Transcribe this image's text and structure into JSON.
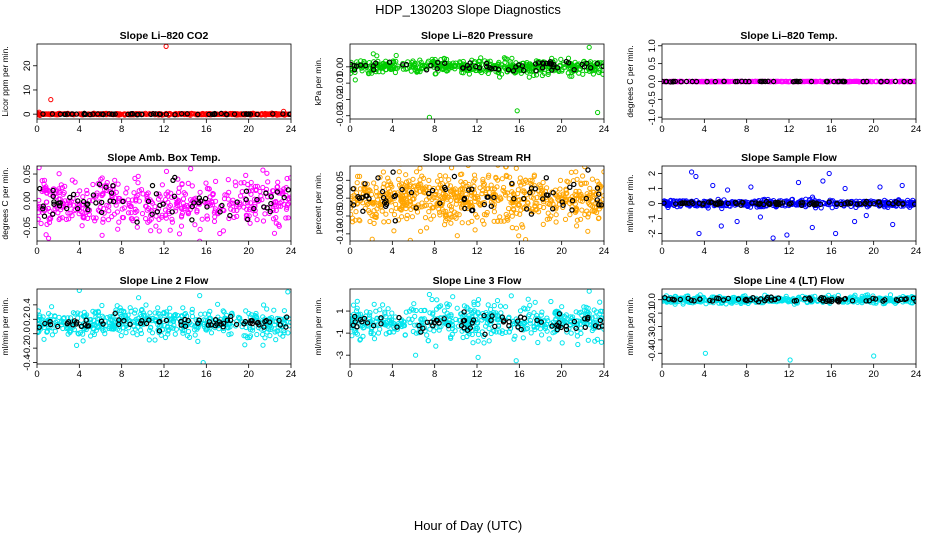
{
  "figure": {
    "title": "HDP_130203  Slope Diagnostics",
    "xlabel": "Hour of Day (UTC)"
  },
  "colors": {
    "co2": "#ff0000",
    "pressure": "#00cc00",
    "temp": "#ff00ff",
    "box_temp": "#ff00ff",
    "rh": "#ffa500",
    "sample_flow": "#0000ff",
    "line_flow": "#00e5ee",
    "reference": "#000000"
  },
  "chart_data": [
    {
      "type": "scatter",
      "title": "Slope Li–820 CO2",
      "ylabel": "Licor ppm per min.",
      "xlim": [
        0,
        24
      ],
      "x_ticks": [
        "0",
        "4",
        "8",
        "12",
        "16",
        "20",
        "24"
      ],
      "ylim": [
        -2,
        29
      ],
      "y_ticks": [
        {
          "v": 0,
          "label": "0"
        },
        {
          "v": 10,
          "label": "10"
        },
        {
          "v": 20,
          "label": "20"
        }
      ],
      "series_color_key": "co2",
      "base": 0,
      "spread": 0.15,
      "n_main": 420,
      "n_ref": 60,
      "ref_spread": 0.12,
      "outliers": [
        [
          12.2,
          28
        ],
        [
          1.3,
          6
        ],
        [
          0.2,
          0.8
        ],
        [
          23.3,
          1.2
        ]
      ]
    },
    {
      "type": "scatter",
      "title": "Slope Li–820 Pressure",
      "ylabel": "kPa per min.",
      "xlim": [
        0,
        24
      ],
      "x_ticks": [
        "0",
        "4",
        "8",
        "12",
        "16",
        "20",
        "24"
      ],
      "ylim": [
        -0.032,
        0.014
      ],
      "y_ticks": [
        {
          "v": 0,
          "label": "0.00"
        },
        {
          "v": -0.01,
          "label": "-0.01"
        },
        {
          "v": -0.02,
          "label": "-0.02"
        },
        {
          "v": -0.03,
          "label": "-0.03"
        }
      ],
      "series_color_key": "pressure",
      "base": 0,
      "spread": 0.0022,
      "n_main": 500,
      "n_ref": 60,
      "ref_spread": 0.0018,
      "outliers": [
        [
          7.5,
          -0.031
        ],
        [
          15.8,
          -0.027
        ],
        [
          23.4,
          -0.028
        ],
        [
          2.2,
          0.008
        ],
        [
          0.5,
          -0.008
        ],
        [
          22.6,
          0.012
        ]
      ]
    },
    {
      "type": "scatter",
      "title": "Slope Li–820 Temp.",
      "ylabel": "degrees C per min.",
      "xlim": [
        0,
        24
      ],
      "x_ticks": [
        "0",
        "4",
        "8",
        "12",
        "16",
        "20",
        "24"
      ],
      "ylim": [
        -1.05,
        1.05
      ],
      "y_ticks": [
        {
          "v": 1,
          "label": "1.0"
        },
        {
          "v": 0.5,
          "label": "0.5"
        },
        {
          "v": 0,
          "label": "0.0"
        },
        {
          "v": -0.5,
          "label": "-0.5"
        },
        {
          "v": -1,
          "label": "-1.0"
        }
      ],
      "series_color_key": "temp",
      "base": 0,
      "spread": 0.003,
      "n_main": 360,
      "n_ref": 50,
      "ref_spread": 0.003,
      "outliers": []
    },
    {
      "type": "scatter",
      "title": "Slope Amb. Box Temp.",
      "ylabel": "degrees C per min.",
      "xlim": [
        0,
        24
      ],
      "x_ticks": [
        "0",
        "4",
        "8",
        "12",
        "16",
        "20",
        "24"
      ],
      "ylim": [
        -0.075,
        0.065
      ],
      "y_ticks": [
        {
          "v": 0.05,
          "label": "0.05"
        },
        {
          "v": 0,
          "label": "0.00"
        },
        {
          "v": -0.05,
          "label": "-0.05"
        }
      ],
      "series_color_key": "box_temp",
      "base": -0.005,
      "spread": 0.024,
      "n_main": 480,
      "n_ref": 70,
      "ref_spread": 0.02,
      "outliers": [
        [
          0.2,
          0.062
        ],
        [
          1.1,
          -0.07
        ]
      ]
    },
    {
      "type": "scatter",
      "title": "Slope Gas Stream RH",
      "ylabel": "percent per min.",
      "xlim": [
        0,
        24
      ],
      "x_ticks": [
        "0",
        "4",
        "8",
        "12",
        "16",
        "20",
        "24"
      ],
      "ylim": [
        -0.12,
        0.09
      ],
      "y_ticks": [
        {
          "v": 0.05,
          "label": "0.05"
        },
        {
          "v": 0,
          "label": "0.00"
        },
        {
          "v": -0.05,
          "label": "-0.05"
        },
        {
          "v": -0.1,
          "label": "-0.10"
        }
      ],
      "series_color_key": "rh",
      "base": 0,
      "spread": 0.035,
      "n_main": 700,
      "n_ref": 70,
      "ref_spread": 0.03,
      "outliers": [
        [
          2.1,
          -0.115
        ],
        [
          9.6,
          0.085
        ]
      ]
    },
    {
      "type": "scatter",
      "title": "Slope Sample Flow",
      "ylabel": "ml/min per min.",
      "xlim": [
        0,
        24
      ],
      "x_ticks": [
        "0",
        "4",
        "8",
        "12",
        "16",
        "20",
        "24"
      ],
      "ylim": [
        -2.5,
        2.5
      ],
      "y_ticks": [
        {
          "v": 2,
          "label": "2"
        },
        {
          "v": 1,
          "label": "1"
        },
        {
          "v": 0,
          "label": "0"
        },
        {
          "v": -1,
          "label": "-1"
        },
        {
          "v": -2,
          "label": "-2"
        }
      ],
      "series_color_key": "sample_flow",
      "base": 0,
      "spread": 0.12,
      "n_main": 420,
      "n_ref": 90,
      "ref_spread": 0.06,
      "outliers": [
        [
          2.8,
          2.1
        ],
        [
          3.2,
          1.8
        ],
        [
          3.5,
          -2.0
        ],
        [
          4.8,
          1.2
        ],
        [
          5.6,
          -1.5
        ],
        [
          7.1,
          -1.2
        ],
        [
          8.4,
          1.1
        ],
        [
          10.5,
          -2.3
        ],
        [
          11.8,
          -2.1
        ],
        [
          12.9,
          1.4
        ],
        [
          14.2,
          -1.6
        ],
        [
          15.2,
          1.5
        ],
        [
          15.8,
          2.0
        ],
        [
          16.4,
          -2.0
        ],
        [
          17.3,
          1.0
        ],
        [
          18.2,
          -1.2
        ],
        [
          20.6,
          1.1
        ],
        [
          21.8,
          -1.4
        ],
        [
          22.7,
          1.2
        ],
        [
          9.3,
          -0.9
        ],
        [
          6.2,
          0.9
        ],
        [
          19.3,
          -0.8
        ]
      ]
    },
    {
      "type": "scatter",
      "title": "Slope Line 2 Flow",
      "ylabel": "ml/min per min.",
      "xlim": [
        0,
        24
      ],
      "x_ticks": [
        "0",
        "4",
        "8",
        "12",
        "16",
        "20",
        "24"
      ],
      "ylim": [
        -0.42,
        0.62
      ],
      "y_ticks": [
        {
          "v": 0.4,
          "label": "0.4"
        },
        {
          "v": 0.2,
          "label": "0.2"
        },
        {
          "v": 0,
          "label": "0.0"
        },
        {
          "v": -0.2,
          "label": "-0.2"
        },
        {
          "v": -0.4,
          "label": "-0.4"
        }
      ],
      "series_color_key": "line_flow",
      "base": 0.15,
      "spread": 0.1,
      "n_main": 520,
      "n_ref": 70,
      "ref_spread": 0.04,
      "outliers": [
        [
          4.0,
          0.6
        ],
        [
          15.7,
          -0.4
        ],
        [
          23.7,
          0.58
        ],
        [
          9.6,
          0.5
        ]
      ]
    },
    {
      "type": "scatter",
      "title": "Slope Line 3 Flow",
      "ylabel": "ml/min per min.",
      "xlim": [
        0,
        24
      ],
      "x_ticks": [
        "0",
        "4",
        "8",
        "12",
        "16",
        "20",
        "24"
      ],
      "ylim": [
        -3.8,
        3.0
      ],
      "y_ticks": [
        {
          "v": 1,
          "label": "1"
        },
        {
          "v": -1,
          "label": "-1"
        },
        {
          "v": -3,
          "label": "-3"
        }
      ],
      "series_color_key": "line_flow",
      "base": 0,
      "spread": 0.8,
      "n_main": 520,
      "n_ref": 70,
      "ref_spread": 0.4,
      "outliers": [
        [
          7.5,
          2.5
        ],
        [
          22.6,
          2.8
        ],
        [
          9.7,
          2.3
        ],
        [
          15.7,
          -3.5
        ],
        [
          6.2,
          -3.0
        ],
        [
          12.1,
          -3.2
        ]
      ]
    },
    {
      "type": "scatter",
      "title": "Slope Line 4 (LT) Flow",
      "ylabel": "ml/min per min.",
      "xlim": [
        0,
        24
      ],
      "x_ticks": [
        "0",
        "4",
        "8",
        "12",
        "16",
        "20",
        "24"
      ],
      "ylim": [
        -0.48,
        0.08
      ],
      "y_ticks": [
        {
          "v": 0,
          "label": "0.0"
        },
        {
          "v": -0.1,
          "label": "-0.1"
        },
        {
          "v": -0.2,
          "label": "-0.2"
        },
        {
          "v": -0.3,
          "label": "-0.3"
        },
        {
          "v": -0.4,
          "label": "-0.4"
        }
      ],
      "series_color_key": "line_flow",
      "base": 0,
      "spread": 0.013,
      "n_main": 450,
      "n_ref": 70,
      "ref_spread": 0.01,
      "outliers": [
        [
          4.1,
          -0.4
        ],
        [
          12.1,
          -0.45
        ],
        [
          20.0,
          -0.42
        ]
      ]
    }
  ]
}
